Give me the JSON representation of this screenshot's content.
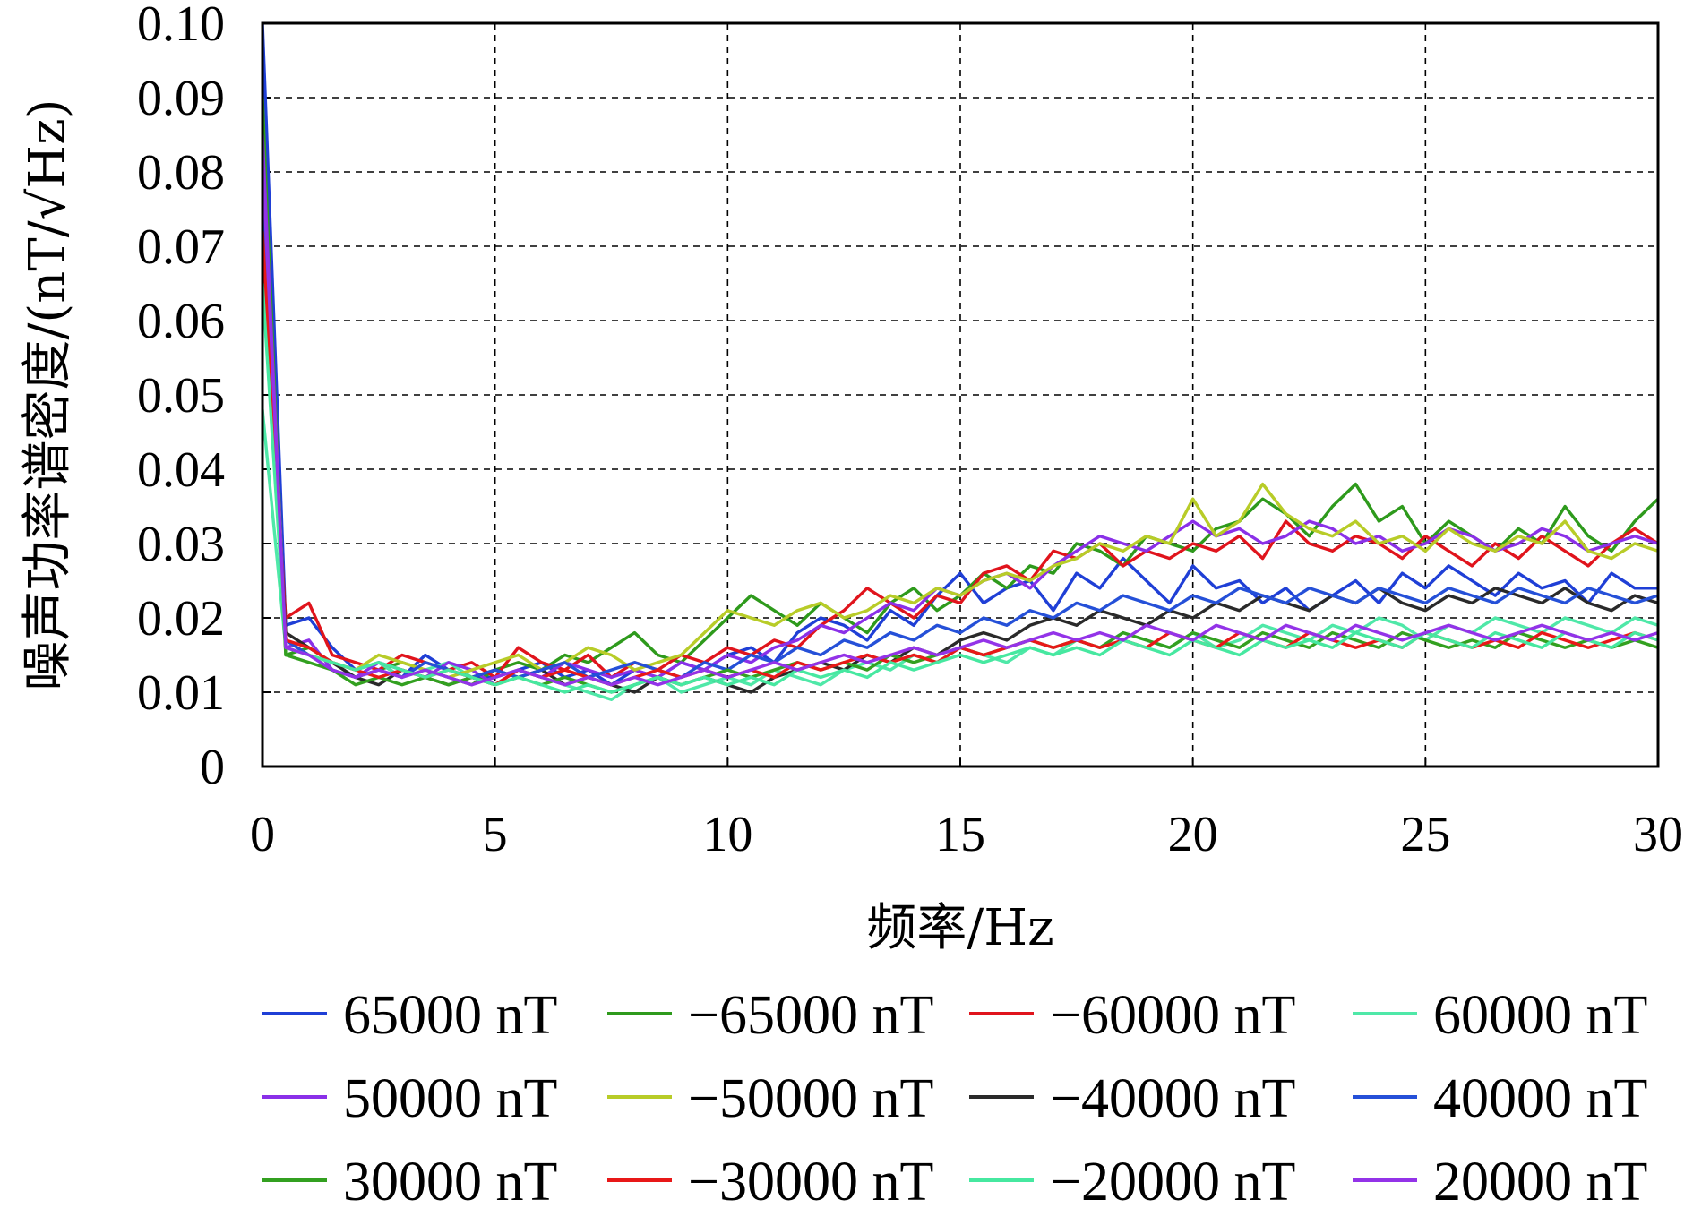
{
  "chart_data": {
    "type": "line",
    "xlabel": "频率/Hz",
    "ylabel": "噪声功率谱密度/(nT/√Hz)",
    "xlim": [
      0,
      30
    ],
    "ylim": [
      0,
      0.1
    ],
    "xticks": [
      "0",
      "5",
      "10",
      "15",
      "20",
      "25",
      "30"
    ],
    "yticks": [
      "0",
      "0.01",
      "0.02",
      "0.03",
      "0.04",
      "0.05",
      "0.06",
      "0.07",
      "0.08",
      "0.09",
      "0.10"
    ],
    "grid": true,
    "legend_position": "bottom",
    "x": [
      0,
      0.5,
      1,
      1.5,
      2,
      2.5,
      3,
      3.5,
      4,
      4.5,
      5,
      5.5,
      6,
      6.5,
      7,
      7.5,
      8,
      8.5,
      9,
      9.5,
      10,
      10.5,
      11,
      11.5,
      12,
      12.5,
      13,
      13.5,
      14,
      14.5,
      15,
      15.5,
      16,
      16.5,
      17,
      17.5,
      18,
      18.5,
      19,
      19.5,
      20,
      20.5,
      21,
      21.5,
      22,
      22.5,
      23,
      23.5,
      24,
      24.5,
      25,
      25.5,
      26,
      26.5,
      27,
      27.5,
      28,
      28.5,
      29,
      29.5,
      30
    ],
    "series": [
      {
        "name": "65000 nT",
        "color": "#1f3fd6",
        "values": [
          0.1,
          0.019,
          0.02,
          0.016,
          0.013,
          0.014,
          0.012,
          0.015,
          0.013,
          0.012,
          0.012,
          0.013,
          0.014,
          0.012,
          0.013,
          0.011,
          0.013,
          0.012,
          0.014,
          0.013,
          0.015,
          0.016,
          0.014,
          0.018,
          0.02,
          0.019,
          0.017,
          0.021,
          0.019,
          0.023,
          0.026,
          0.022,
          0.024,
          0.025,
          0.021,
          0.026,
          0.024,
          0.028,
          0.025,
          0.022,
          0.027,
          0.024,
          0.025,
          0.022,
          0.024,
          0.021,
          0.023,
          0.025,
          0.022,
          0.026,
          0.024,
          0.027,
          0.025,
          0.023,
          0.026,
          0.024,
          0.025,
          0.022,
          0.026,
          0.024,
          0.024
        ]
      },
      {
        "name": "−65000 nT",
        "color": "#2e9a1c",
        "values": [
          0.09,
          0.015,
          0.016,
          0.014,
          0.012,
          0.013,
          0.014,
          0.013,
          0.012,
          0.011,
          0.013,
          0.014,
          0.013,
          0.015,
          0.014,
          0.016,
          0.018,
          0.015,
          0.014,
          0.017,
          0.02,
          0.023,
          0.021,
          0.019,
          0.022,
          0.02,
          0.018,
          0.022,
          0.024,
          0.021,
          0.023,
          0.026,
          0.024,
          0.027,
          0.026,
          0.03,
          0.029,
          0.027,
          0.031,
          0.03,
          0.029,
          0.032,
          0.033,
          0.036,
          0.034,
          0.031,
          0.035,
          0.038,
          0.033,
          0.035,
          0.03,
          0.033,
          0.031,
          0.029,
          0.032,
          0.03,
          0.035,
          0.031,
          0.029,
          0.033,
          0.036
        ]
      },
      {
        "name": "−60000 nT",
        "color": "#e0141c",
        "values": [
          0.068,
          0.02,
          0.022,
          0.015,
          0.014,
          0.013,
          0.015,
          0.014,
          0.013,
          0.014,
          0.012,
          0.016,
          0.014,
          0.013,
          0.015,
          0.012,
          0.014,
          0.013,
          0.015,
          0.014,
          0.016,
          0.015,
          0.017,
          0.016,
          0.019,
          0.021,
          0.024,
          0.022,
          0.02,
          0.023,
          0.022,
          0.026,
          0.027,
          0.025,
          0.029,
          0.028,
          0.03,
          0.027,
          0.029,
          0.028,
          0.03,
          0.029,
          0.031,
          0.028,
          0.033,
          0.03,
          0.029,
          0.031,
          0.03,
          0.028,
          0.031,
          0.029,
          0.027,
          0.03,
          0.028,
          0.031,
          0.029,
          0.027,
          0.03,
          0.032,
          0.03
        ]
      },
      {
        "name": "60000 nT",
        "color": "#4fe8a8",
        "values": [
          0.048,
          0.016,
          0.015,
          0.014,
          0.013,
          0.014,
          0.012,
          0.013,
          0.014,
          0.012,
          0.011,
          0.013,
          0.012,
          0.011,
          0.01,
          0.009,
          0.011,
          0.012,
          0.01,
          0.011,
          0.012,
          0.011,
          0.013,
          0.012,
          0.011,
          0.013,
          0.014,
          0.013,
          0.015,
          0.014,
          0.016,
          0.015,
          0.014,
          0.016,
          0.015,
          0.017,
          0.016,
          0.018,
          0.017,
          0.016,
          0.018,
          0.016,
          0.017,
          0.019,
          0.018,
          0.017,
          0.019,
          0.018,
          0.02,
          0.019,
          0.017,
          0.019,
          0.018,
          0.02,
          0.019,
          0.018,
          0.02,
          0.019,
          0.018,
          0.02,
          0.019
        ]
      },
      {
        "name": "50000 nT",
        "color": "#8a30e8",
        "values": [
          0.085,
          0.016,
          0.017,
          0.013,
          0.012,
          0.014,
          0.013,
          0.012,
          0.014,
          0.013,
          0.011,
          0.013,
          0.012,
          0.014,
          0.013,
          0.012,
          0.013,
          0.012,
          0.014,
          0.013,
          0.015,
          0.014,
          0.016,
          0.017,
          0.019,
          0.018,
          0.02,
          0.022,
          0.021,
          0.024,
          0.023,
          0.025,
          0.026,
          0.024,
          0.027,
          0.029,
          0.031,
          0.03,
          0.029,
          0.031,
          0.033,
          0.031,
          0.032,
          0.03,
          0.031,
          0.033,
          0.032,
          0.03,
          0.031,
          0.029,
          0.03,
          0.032,
          0.031,
          0.029,
          0.03,
          0.032,
          0.031,
          0.029,
          0.03,
          0.031,
          0.03
        ]
      },
      {
        "name": "−50000 nT",
        "color": "#b8cc28",
        "values": [
          0.08,
          0.017,
          0.015,
          0.014,
          0.013,
          0.015,
          0.014,
          0.013,
          0.012,
          0.013,
          0.014,
          0.015,
          0.013,
          0.014,
          0.016,
          0.015,
          0.013,
          0.014,
          0.015,
          0.018,
          0.021,
          0.02,
          0.019,
          0.021,
          0.022,
          0.02,
          0.021,
          0.023,
          0.022,
          0.024,
          0.023,
          0.025,
          0.026,
          0.025,
          0.027,
          0.028,
          0.03,
          0.029,
          0.031,
          0.03,
          0.036,
          0.031,
          0.033,
          0.038,
          0.034,
          0.032,
          0.031,
          0.033,
          0.03,
          0.031,
          0.029,
          0.032,
          0.03,
          0.029,
          0.031,
          0.03,
          0.033,
          0.029,
          0.028,
          0.03,
          0.029
        ]
      },
      {
        "name": "−40000 nT",
        "color": "#2a2a2a",
        "values": [
          0.075,
          0.018,
          0.016,
          0.014,
          0.012,
          0.011,
          0.013,
          0.012,
          0.011,
          0.012,
          0.013,
          0.012,
          0.013,
          0.011,
          0.012,
          0.011,
          0.01,
          0.012,
          0.011,
          0.012,
          0.011,
          0.01,
          0.012,
          0.013,
          0.014,
          0.013,
          0.015,
          0.014,
          0.016,
          0.015,
          0.017,
          0.018,
          0.017,
          0.019,
          0.02,
          0.019,
          0.021,
          0.02,
          0.019,
          0.021,
          0.02,
          0.022,
          0.021,
          0.023,
          0.022,
          0.021,
          0.023,
          0.022,
          0.024,
          0.022,
          0.021,
          0.023,
          0.022,
          0.024,
          0.023,
          0.022,
          0.024,
          0.022,
          0.021,
          0.023,
          0.022
        ]
      },
      {
        "name": "40000 nT",
        "color": "#2550d8",
        "values": [
          0.078,
          0.017,
          0.015,
          0.013,
          0.012,
          0.013,
          0.012,
          0.014,
          0.013,
          0.012,
          0.013,
          0.012,
          0.013,
          0.014,
          0.012,
          0.013,
          0.014,
          0.013,
          0.012,
          0.014,
          0.013,
          0.015,
          0.014,
          0.016,
          0.015,
          0.017,
          0.016,
          0.018,
          0.017,
          0.019,
          0.018,
          0.02,
          0.019,
          0.021,
          0.02,
          0.022,
          0.021,
          0.023,
          0.022,
          0.021,
          0.023,
          0.022,
          0.024,
          0.023,
          0.022,
          0.024,
          0.023,
          0.022,
          0.024,
          0.023,
          0.022,
          0.024,
          0.023,
          0.022,
          0.024,
          0.023,
          0.022,
          0.024,
          0.023,
          0.022,
          0.023
        ]
      },
      {
        "name": "30000 nT",
        "color": "#33a020",
        "values": [
          0.07,
          0.015,
          0.014,
          0.013,
          0.011,
          0.012,
          0.011,
          0.012,
          0.011,
          0.012,
          0.011,
          0.012,
          0.011,
          0.012,
          0.011,
          0.01,
          0.011,
          0.012,
          0.011,
          0.012,
          0.013,
          0.012,
          0.013,
          0.014,
          0.013,
          0.014,
          0.013,
          0.015,
          0.014,
          0.015,
          0.016,
          0.015,
          0.016,
          0.017,
          0.016,
          0.017,
          0.016,
          0.018,
          0.017,
          0.016,
          0.018,
          0.017,
          0.016,
          0.018,
          0.017,
          0.016,
          0.018,
          0.017,
          0.016,
          0.018,
          0.017,
          0.016,
          0.017,
          0.016,
          0.018,
          0.017,
          0.016,
          0.017,
          0.016,
          0.017,
          0.016
        ]
      },
      {
        "name": "−30000 nT",
        "color": "#e81818",
        "values": [
          0.072,
          0.017,
          0.016,
          0.014,
          0.013,
          0.012,
          0.013,
          0.012,
          0.013,
          0.012,
          0.011,
          0.013,
          0.012,
          0.013,
          0.012,
          0.011,
          0.012,
          0.013,
          0.012,
          0.013,
          0.012,
          0.013,
          0.012,
          0.014,
          0.013,
          0.014,
          0.015,
          0.014,
          0.015,
          0.014,
          0.016,
          0.015,
          0.016,
          0.017,
          0.016,
          0.017,
          0.016,
          0.017,
          0.016,
          0.018,
          0.017,
          0.016,
          0.018,
          0.017,
          0.016,
          0.018,
          0.017,
          0.016,
          0.017,
          0.016,
          0.018,
          0.017,
          0.016,
          0.017,
          0.016,
          0.018,
          0.017,
          0.016,
          0.017,
          0.018,
          0.017
        ]
      },
      {
        "name": "−20000 nT",
        "color": "#46e8a0",
        "values": [
          0.065,
          0.016,
          0.015,
          0.014,
          0.013,
          0.014,
          0.013,
          0.012,
          0.013,
          0.012,
          0.011,
          0.012,
          0.011,
          0.01,
          0.011,
          0.01,
          0.011,
          0.012,
          0.011,
          0.012,
          0.011,
          0.012,
          0.011,
          0.013,
          0.012,
          0.013,
          0.012,
          0.014,
          0.013,
          0.014,
          0.015,
          0.014,
          0.015,
          0.016,
          0.015,
          0.016,
          0.015,
          0.017,
          0.016,
          0.015,
          0.017,
          0.016,
          0.015,
          0.017,
          0.016,
          0.017,
          0.016,
          0.018,
          0.017,
          0.016,
          0.018,
          0.017,
          0.016,
          0.018,
          0.017,
          0.016,
          0.018,
          0.017,
          0.016,
          0.018,
          0.017
        ]
      },
      {
        "name": "20000 nT",
        "color": "#9333e8",
        "values": [
          0.082,
          0.016,
          0.015,
          0.013,
          0.012,
          0.013,
          0.012,
          0.013,
          0.012,
          0.011,
          0.012,
          0.013,
          0.012,
          0.011,
          0.012,
          0.011,
          0.012,
          0.011,
          0.012,
          0.013,
          0.012,
          0.013,
          0.014,
          0.013,
          0.014,
          0.015,
          0.014,
          0.015,
          0.016,
          0.015,
          0.016,
          0.017,
          0.016,
          0.017,
          0.018,
          0.017,
          0.018,
          0.017,
          0.019,
          0.018,
          0.017,
          0.019,
          0.018,
          0.017,
          0.019,
          0.018,
          0.017,
          0.019,
          0.018,
          0.017,
          0.018,
          0.019,
          0.018,
          0.017,
          0.018,
          0.019,
          0.018,
          0.017,
          0.018,
          0.017,
          0.018
        ]
      }
    ]
  }
}
